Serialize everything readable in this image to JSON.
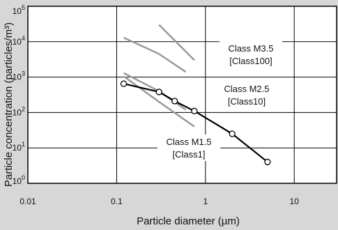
{
  "chart_data": {
    "type": "line",
    "xlabel": "Particle diameter (µm)",
    "ylabel": "Particle concentration (particles/m³)",
    "x_scale": "log",
    "y_scale": "log",
    "xlim": [
      0.01,
      30
    ],
    "ylim": [
      1,
      100000
    ],
    "grid": true,
    "x_ticks": [
      {
        "value": 0.01,
        "label": "0.01"
      },
      {
        "value": 0.1,
        "label": "0.1"
      },
      {
        "value": 1,
        "label": "1"
      },
      {
        "value": 10,
        "label": "10"
      }
    ],
    "y_ticks": [
      {
        "value": 1,
        "base": "10",
        "exp": "0"
      },
      {
        "value": 10,
        "base": "10",
        "exp": "1"
      },
      {
        "value": 100,
        "base": "10",
        "exp": "2"
      },
      {
        "value": 1000,
        "base": "10",
        "exp": "3"
      },
      {
        "value": 10000,
        "base": "10",
        "exp": "4"
      },
      {
        "value": 100000,
        "base": "10",
        "exp": "5"
      }
    ],
    "series": [
      {
        "key": "m35",
        "style": "limit",
        "color": "#999999",
        "points": [
          [
            0.12,
            13000
          ],
          [
            0.3,
            4500
          ],
          [
            0.6,
            1400
          ]
        ],
        "annotation": {
          "lines": [
            "Class M3.5",
            "[Class100]"
          ]
        }
      },
      {
        "key": "m35-upper",
        "style": "limit",
        "color": "#999999",
        "points": [
          [
            0.3,
            30000
          ],
          [
            0.75,
            3000
          ]
        ]
      },
      {
        "key": "m25",
        "style": "limit",
        "color": "#999999",
        "points": [
          [
            0.12,
            1300
          ],
          [
            0.3,
            400
          ],
          [
            0.6,
            120
          ]
        ],
        "annotation": {
          "lines": [
            "Class M2.5",
            "[Class10]"
          ]
        }
      },
      {
        "key": "m15",
        "style": "limit",
        "color": "#999999",
        "points": [
          [
            0.12,
            1050
          ],
          [
            0.3,
            200
          ],
          [
            0.75,
            40
          ]
        ],
        "annotation": {
          "lines": [
            "Class M1.5",
            "[Class1]"
          ]
        }
      },
      {
        "key": "measured",
        "style": "measured",
        "color": "#000000",
        "points": [
          [
            0.12,
            650
          ],
          [
            0.3,
            380
          ],
          [
            0.45,
            210
          ],
          [
            0.75,
            110
          ],
          [
            2,
            25
          ],
          [
            5,
            4
          ]
        ]
      }
    ]
  }
}
